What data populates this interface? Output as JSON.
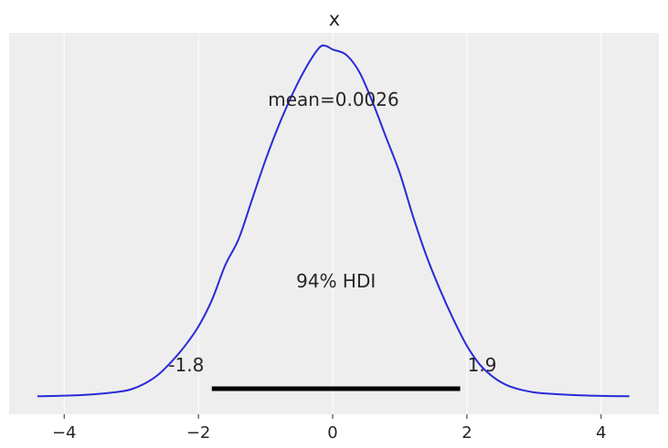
{
  "chart_data": {
    "type": "line",
    "title": "x",
    "xlabel": "",
    "ylabel": "",
    "xlim": [
      -4.82,
      4.86
    ],
    "ylim": [
      -0.02,
      0.415
    ],
    "xticks": [
      -4,
      -2,
      0,
      2,
      4
    ],
    "xtick_labels": [
      "−4",
      "−2",
      "0",
      "2",
      "4"
    ],
    "grid": true,
    "y_axis_visible": false,
    "density": {
      "x": [
        -4.4,
        -4.0,
        -3.6,
        -3.2,
        -3.0,
        -2.8,
        -2.6,
        -2.4,
        -2.2,
        -2.0,
        -1.8,
        -1.6,
        -1.4,
        -1.2,
        -1.0,
        -0.8,
        -0.6,
        -0.4,
        -0.2,
        -0.1,
        0.0,
        0.2,
        0.4,
        0.6,
        0.8,
        1.0,
        1.2,
        1.4,
        1.6,
        1.8,
        2.0,
        2.2,
        2.4,
        2.6,
        2.8,
        3.0,
        3.2,
        3.6,
        4.0,
        4.42
      ],
      "y": [
        0.0005,
        0.0012,
        0.0025,
        0.0055,
        0.0085,
        0.015,
        0.025,
        0.04,
        0.058,
        0.08,
        0.11,
        0.15,
        0.18,
        0.225,
        0.27,
        0.31,
        0.345,
        0.375,
        0.398,
        0.4,
        0.396,
        0.39,
        0.37,
        0.335,
        0.295,
        0.255,
        0.205,
        0.16,
        0.122,
        0.088,
        0.058,
        0.036,
        0.022,
        0.013,
        0.008,
        0.005,
        0.0035,
        0.0018,
        0.0009,
        0.0005
      ]
    },
    "hdi": {
      "label": "94% HDI",
      "low": -1.8,
      "high": 1.9,
      "low_label": "-1.8",
      "high_label": "1.9"
    },
    "mean_label": "mean=0.0026",
    "colors": {
      "line": "#2a2ad8",
      "background": "#eeeeee",
      "grid": "#ffffff",
      "hdi": "#000000",
      "text": "#262626"
    }
  }
}
